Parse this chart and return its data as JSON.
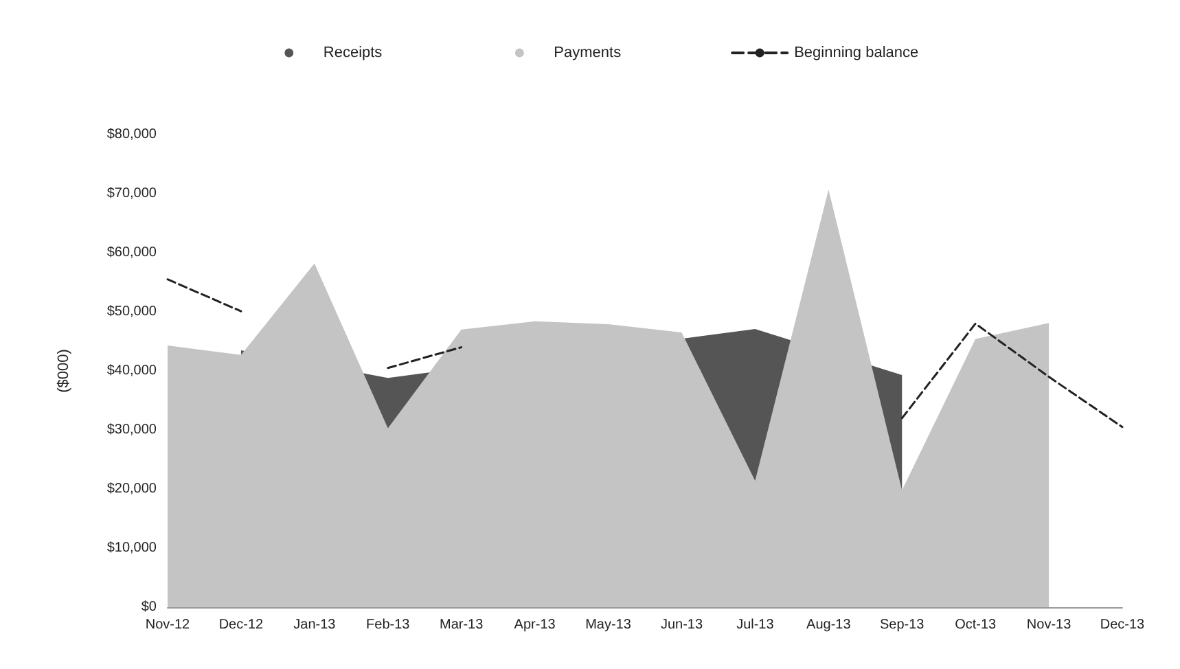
{
  "chart_data": {
    "type": "area",
    "ylabel": "($000)",
    "categories": [
      "Nov-12",
      "Dec-12",
      "Jan-13",
      "Feb-13",
      "Mar-13",
      "Apr-13",
      "May-13",
      "Jun-13",
      "Jul-13",
      "Aug-13",
      "Sep-13",
      "Oct-13",
      "Nov-13",
      "Dec-13"
    ],
    "series": [
      {
        "name": "Receipts",
        "color": "#555555",
        "values": [
          null,
          43500,
          null,
          38800,
          null,
          null,
          null,
          null,
          47100,
          null,
          39300,
          null,
          null,
          null
        ]
      },
      {
        "name": "Payments",
        "color": "#c4c4c4",
        "values": [
          44300,
          42700,
          58200,
          30300,
          47000,
          48400,
          47900,
          46500,
          21400,
          70700,
          19800,
          45400,
          48100,
          null
        ]
      },
      {
        "name": "Beginning balance",
        "type": "line",
        "color": "#222222",
        "line_style": "dashed",
        "values": [
          55500,
          50100,
          null,
          40500,
          44000,
          null,
          null,
          null,
          null,
          null,
          32000,
          48000,
          39000,
          30500
        ]
      }
    ],
    "ylim": [
      0,
      80000
    ],
    "yticks": [
      {
        "value": 0,
        "label": "$0"
      },
      {
        "value": 10000,
        "label": "$10,000"
      },
      {
        "value": 20000,
        "label": "$20,000"
      },
      {
        "value": 30000,
        "label": "$30,000"
      },
      {
        "value": 40000,
        "label": "$40,000"
      },
      {
        "value": 50000,
        "label": "$50,000"
      },
      {
        "value": 60000,
        "label": "$60,000"
      },
      {
        "value": 70000,
        "label": "$70,000"
      },
      {
        "value": 80000,
        "label": "$80,000"
      }
    ],
    "grid": false,
    "legend": "top",
    "marker": "none"
  }
}
